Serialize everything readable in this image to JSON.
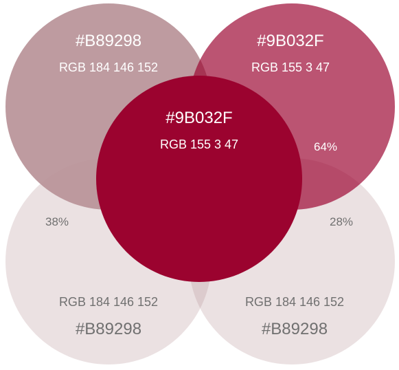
{
  "swatches": {
    "top_left": {
      "hex": "#B89298",
      "rgb": "RGB 184 146 152",
      "color": "#B89298"
    },
    "top_right": {
      "hex": "#9B032F",
      "rgb": "RGB 155 3 47",
      "color": "#9B032F"
    },
    "center": {
      "hex": "#9B032F",
      "rgb": "RGB 155 3 47",
      "color": "#9B032F"
    },
    "bottom_left": {
      "hex": "#B89298",
      "rgb": "RGB 184 146 152",
      "color": "#B89298"
    },
    "bottom_right": {
      "hex": "#B89298",
      "rgb": "RGB 184 146 152",
      "color": "#B89298"
    }
  },
  "percentages": {
    "top_right": "64%",
    "bottom_left": "38%",
    "bottom_right": "28%"
  }
}
